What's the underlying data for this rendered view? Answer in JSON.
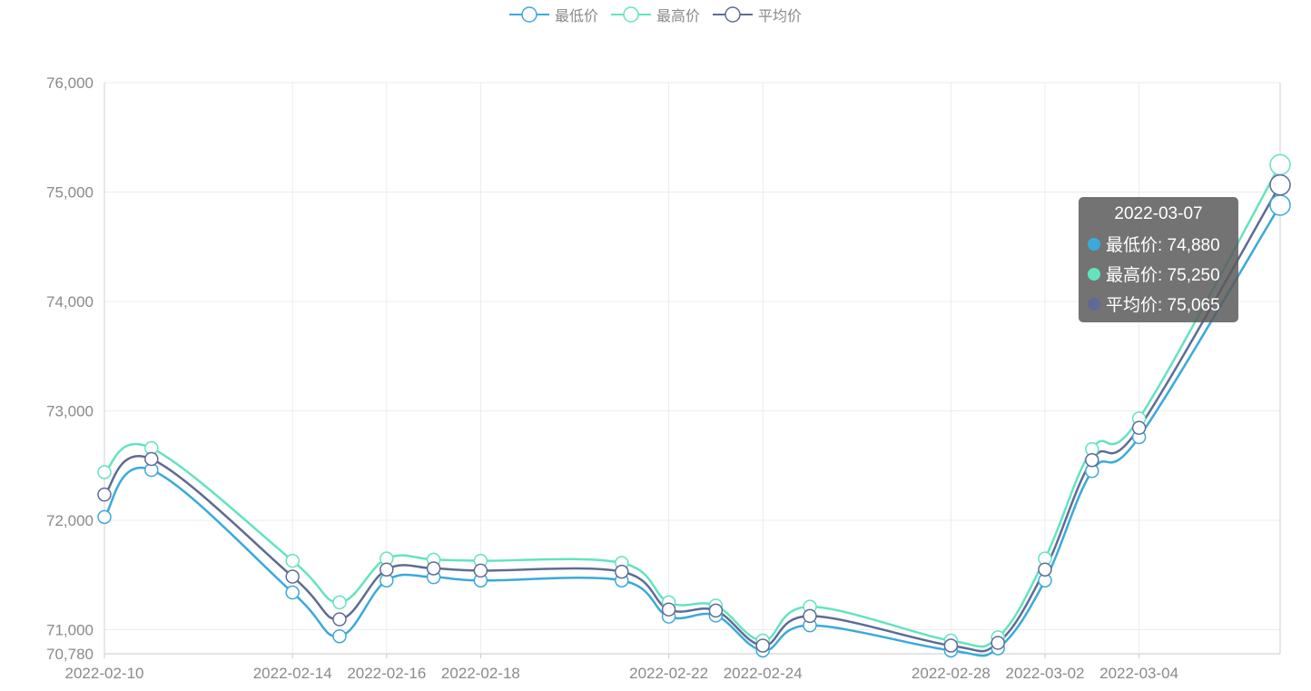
{
  "chart_data": {
    "type": "line",
    "x": [
      "2022-02-10",
      "2022-02-11",
      "2022-02-14",
      "2022-02-15",
      "2022-02-16",
      "2022-02-17",
      "2022-02-18",
      "2022-02-21",
      "2022-02-22",
      "2022-02-23",
      "2022-02-24",
      "2022-02-25",
      "2022-02-28",
      "2022-03-01",
      "2022-03-02",
      "2022-03-03",
      "2022-03-04",
      "2022-03-07"
    ],
    "x_tick_labels": [
      "2022-02-10",
      "2022-02-14",
      "2022-02-16",
      "2022-02-18",
      "2022-02-22",
      "2022-02-24",
      "2022-02-28",
      "2022-03-02",
      "2022-03-04"
    ],
    "series": [
      {
        "name": "最低价",
        "color": "#3ba9dc",
        "values": [
          72030,
          72460,
          71340,
          70940,
          71450,
          71480,
          71450,
          71450,
          71120,
          71130,
          70810,
          71040,
          70810,
          70830,
          71450,
          72450,
          72760,
          74880
        ]
      },
      {
        "name": "最高价",
        "color": "#64e3bf",
        "values": [
          72440,
          72660,
          71630,
          71250,
          71650,
          71640,
          71630,
          71610,
          71250,
          71220,
          70900,
          71210,
          70900,
          70930,
          71650,
          72650,
          72930,
          75250
        ]
      },
      {
        "name": "平均价",
        "color": "#5f6b95",
        "values": [
          72235,
          72560,
          71485,
          71095,
          71550,
          71560,
          71540,
          71530,
          71185,
          71175,
          70855,
          71125,
          70855,
          70880,
          71550,
          72550,
          72845,
          75065
        ]
      }
    ],
    "y_ticks": [
      70780,
      71000,
      72000,
      73000,
      74000,
      75000,
      76000
    ],
    "ylim": [
      70780,
      76000
    ],
    "grid": true,
    "legend": "top-center",
    "tooltip": {
      "title": "2022-03-07",
      "rows": [
        {
          "label": "最低价: 74,880",
          "color": "#3ba9dc"
        },
        {
          "label": "最高价: 75,250",
          "color": "#64e3bf"
        },
        {
          "label": "平均价: 75,065",
          "color": "#5f6b95"
        }
      ]
    }
  }
}
